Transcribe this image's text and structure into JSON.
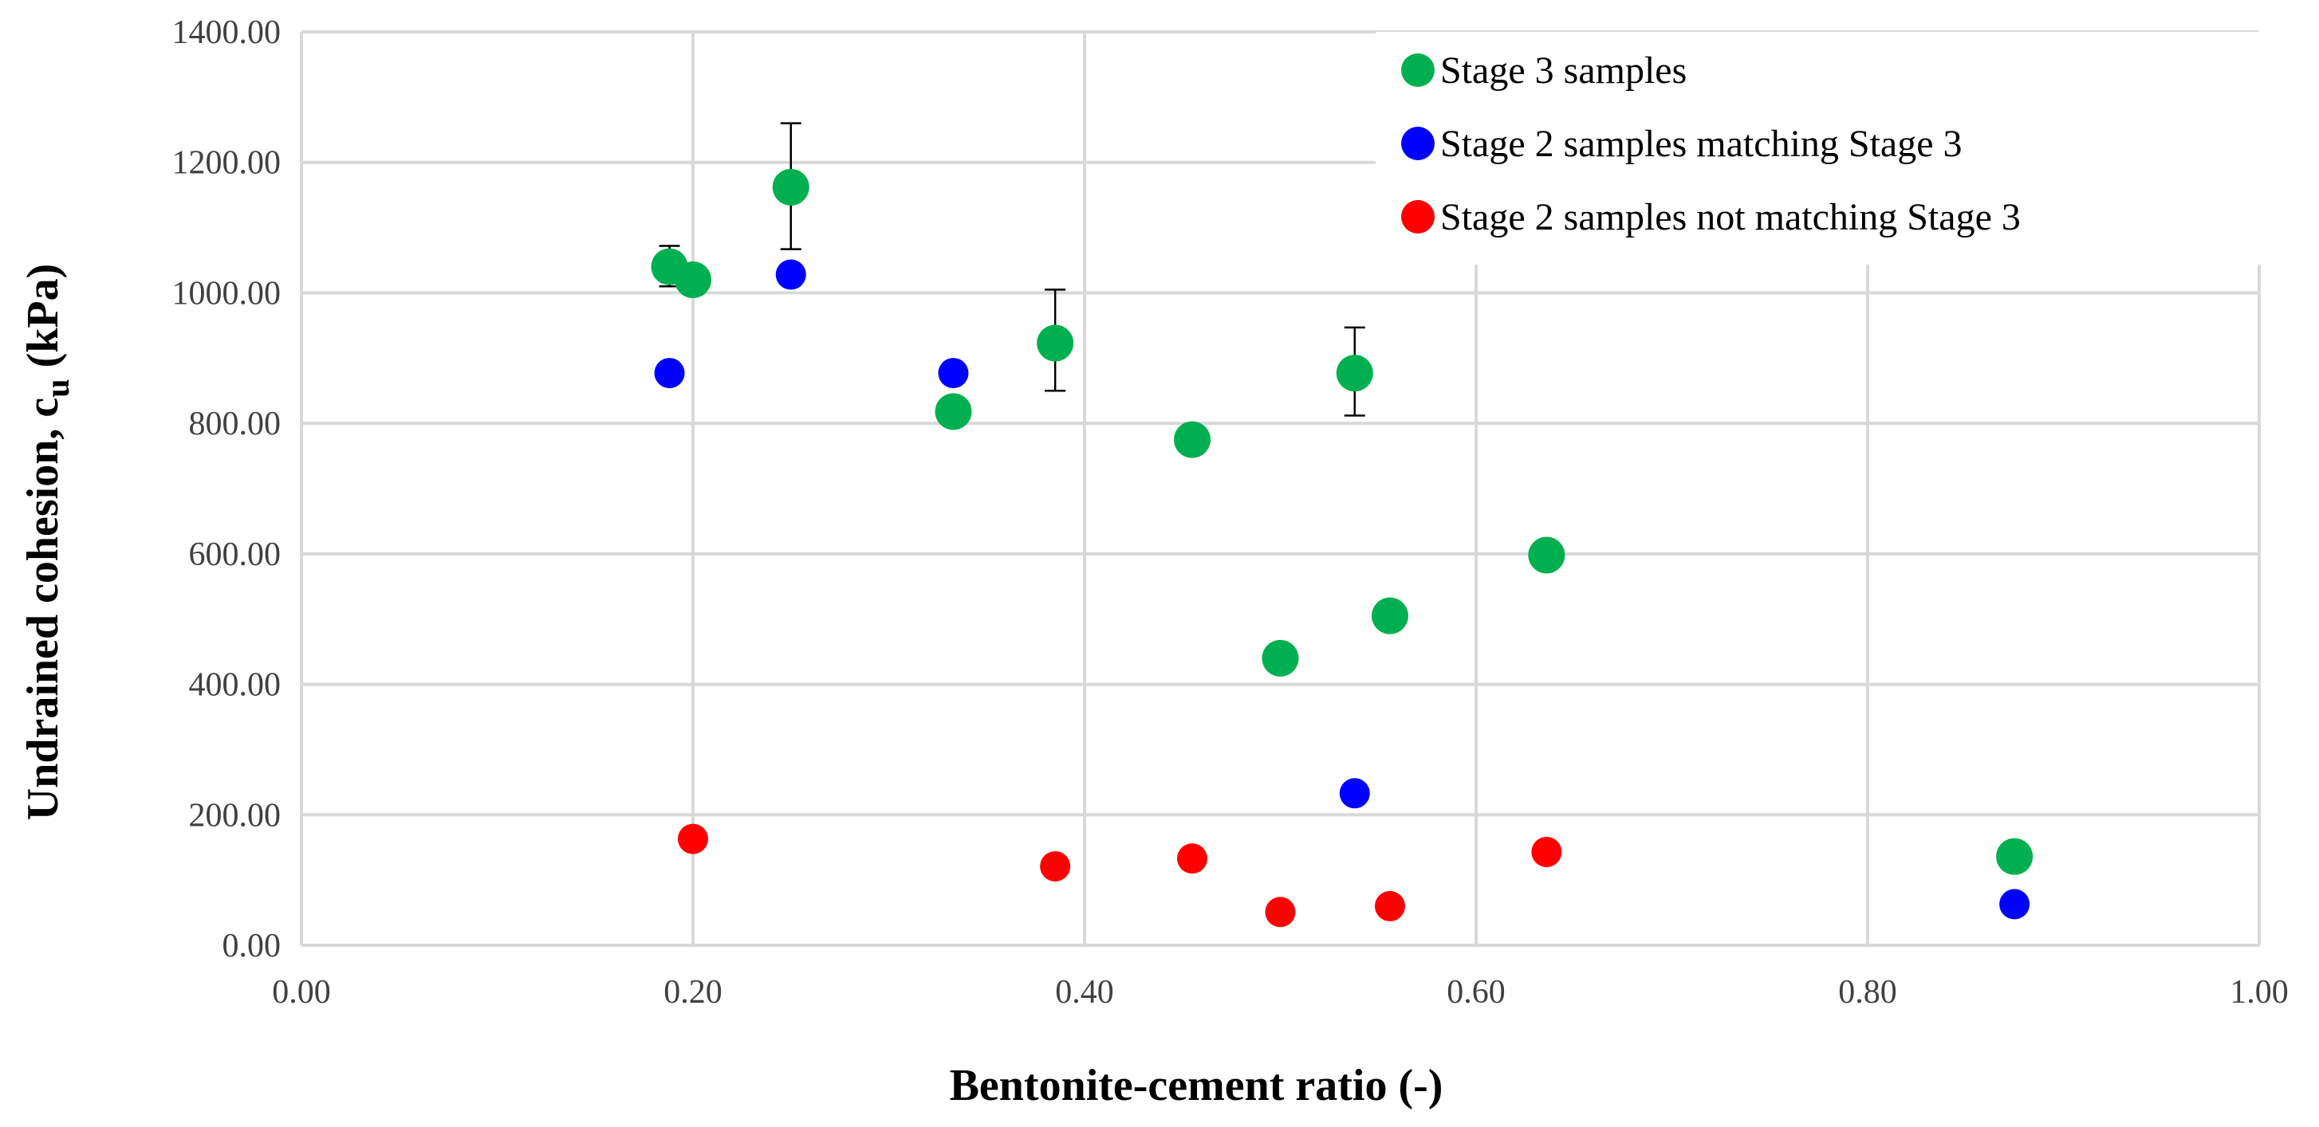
{
  "chart_data": {
    "type": "scatter",
    "title": "",
    "xlabel": "Bentonite-cement ratio (-)",
    "ylabel_main": "Undrained cohesion, c",
    "ylabel_sub": "u",
    "ylabel_unit": " (kPa)",
    "xlim": [
      0.0,
      1.0
    ],
    "ylim": [
      0.0,
      1400.0
    ],
    "x_ticks": [
      0.0,
      0.2,
      0.4,
      0.6,
      0.8,
      1.0
    ],
    "y_ticks": [
      0,
      200,
      400,
      600,
      800,
      1000,
      1200,
      1400
    ],
    "x_tick_labels": [
      "0.00",
      "0.20",
      "0.40",
      "0.60",
      "0.80",
      "1.00"
    ],
    "y_tick_labels": [
      "0.00",
      "200.00",
      "400.00",
      "600.00",
      "800.00",
      "1000.00",
      "1200.00",
      "1400.00"
    ],
    "grid": true,
    "legend_position": "top-right",
    "series": [
      {
        "name": "Stage 3 samples",
        "color": "#00b050",
        "points": [
          {
            "x": 0.188,
            "y": 1040,
            "err_low": 1010,
            "err_high": 1072
          },
          {
            "x": 0.2,
            "y": 1020
          },
          {
            "x": 0.25,
            "y": 1162,
            "err_low": 1067,
            "err_high": 1260
          },
          {
            "x": 0.333,
            "y": 818
          },
          {
            "x": 0.385,
            "y": 923,
            "err_low": 850,
            "err_high": 1005
          },
          {
            "x": 0.455,
            "y": 775
          },
          {
            "x": 0.5,
            "y": 440
          },
          {
            "x": 0.538,
            "y": 877,
            "err_low": 812,
            "err_high": 947
          },
          {
            "x": 0.556,
            "y": 505
          },
          {
            "x": 0.636,
            "y": 598
          },
          {
            "x": 0.875,
            "y": 136
          }
        ]
      },
      {
        "name": "Stage 2 samples matching Stage 3",
        "color": "#0000ff",
        "points": [
          {
            "x": 0.188,
            "y": 877
          },
          {
            "x": 0.25,
            "y": 1028
          },
          {
            "x": 0.333,
            "y": 877
          },
          {
            "x": 0.538,
            "y": 233
          },
          {
            "x": 0.875,
            "y": 63
          }
        ]
      },
      {
        "name": "Stage 2 samples not matching Stage 3",
        "color": "#ff0000",
        "points": [
          {
            "x": 0.2,
            "y": 163
          },
          {
            "x": 0.385,
            "y": 121
          },
          {
            "x": 0.455,
            "y": 133
          },
          {
            "x": 0.5,
            "y": 51
          },
          {
            "x": 0.556,
            "y": 60
          },
          {
            "x": 0.636,
            "y": 143
          }
        ]
      }
    ]
  }
}
